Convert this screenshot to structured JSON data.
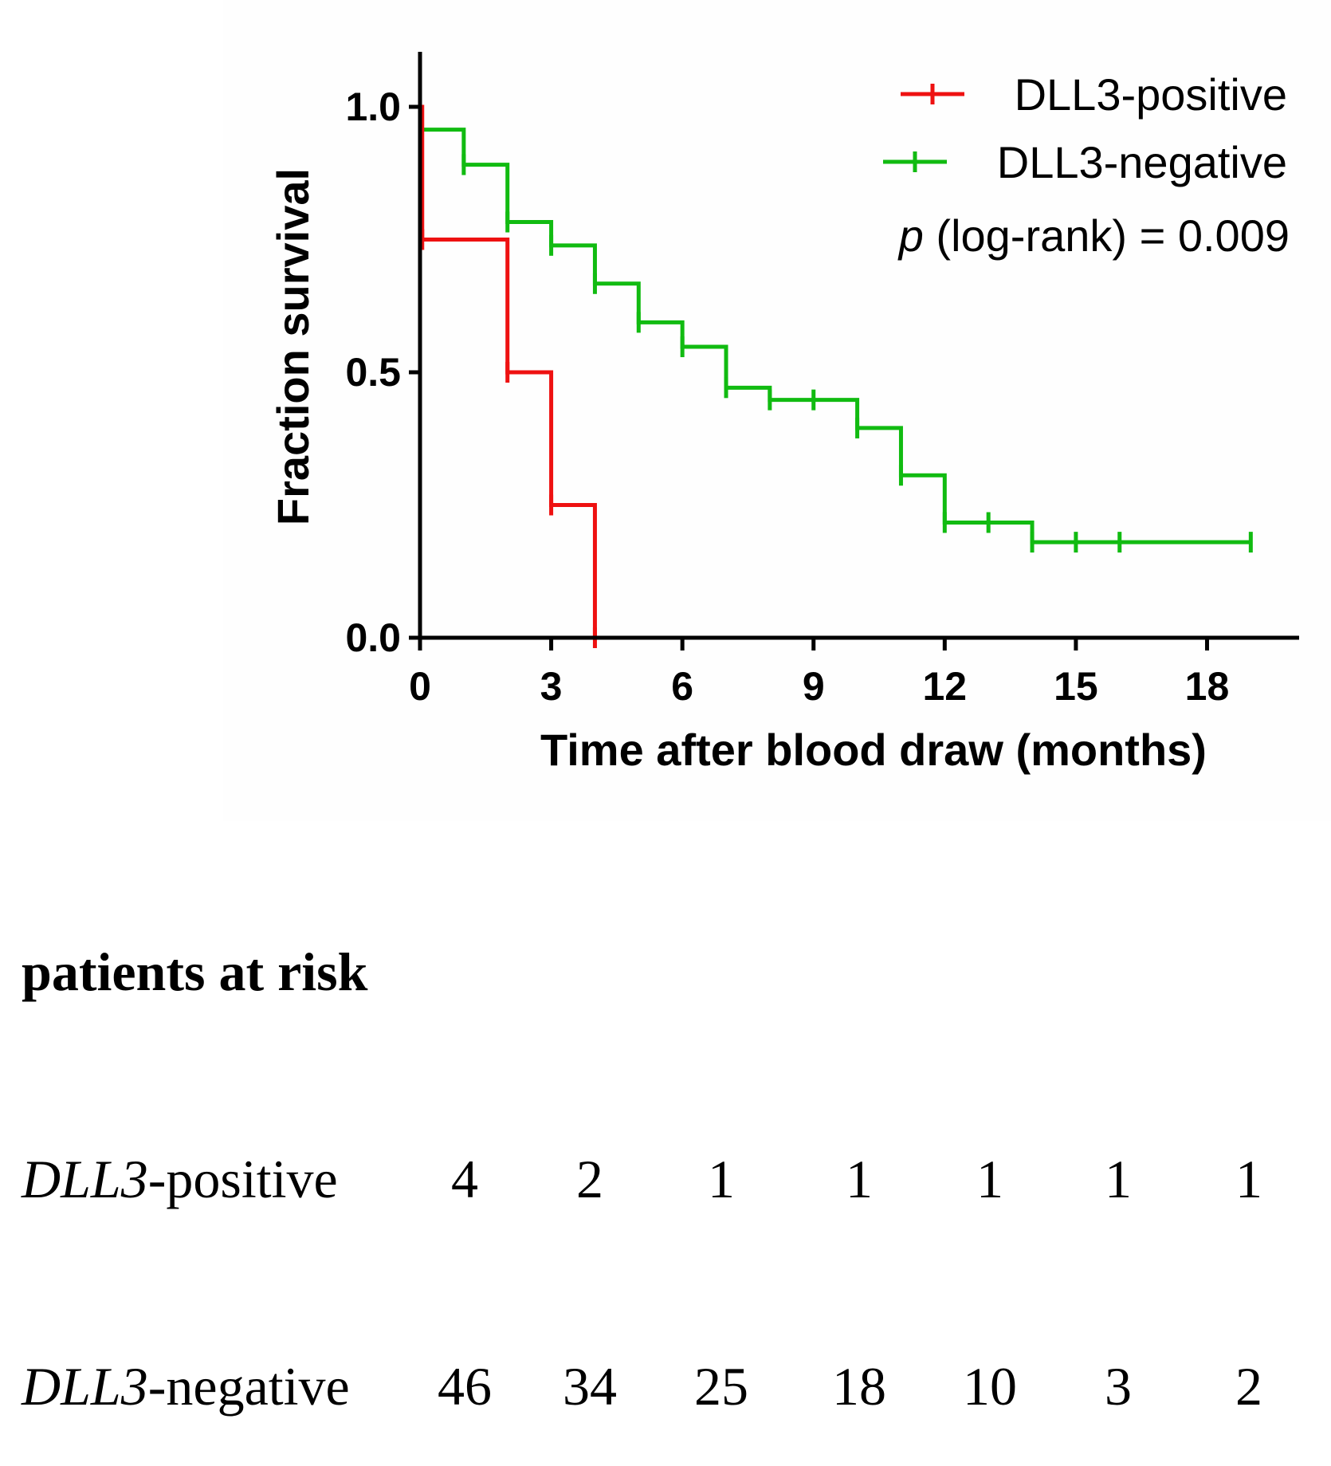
{
  "chart_data": {
    "type": "line",
    "subtype": "kaplan-meier",
    "xlabel": "Time after blood draw (months)",
    "ylabel": "Fraction survival",
    "xlim": [
      0,
      20
    ],
    "ylim": [
      0,
      1.1
    ],
    "xticks": [
      0,
      3,
      6,
      9,
      12,
      15,
      18
    ],
    "yticks": [
      0.0,
      0.5,
      1.0
    ],
    "xtick_labels": [
      "0",
      "3",
      "6",
      "9",
      "12",
      "15",
      "18"
    ],
    "ytick_labels": [
      "0.0",
      "0.5",
      "1.0"
    ],
    "grid": false,
    "legend_position": "top-right",
    "annotation": {
      "italic": "p",
      "rest": " (log-rank) = 0.009"
    },
    "series": [
      {
        "name": "DLL3-positive",
        "color": "#ee1111",
        "steps": [
          [
            0,
            1.0
          ],
          [
            0.05,
            0.75
          ],
          [
            2,
            0.5
          ],
          [
            3,
            0.25
          ],
          [
            4,
            0.0
          ]
        ],
        "end_x": 4,
        "censored": [
          [
            0.05,
            0.75
          ],
          [
            2,
            0.5
          ],
          [
            3,
            0.25
          ],
          [
            4,
            0.0
          ]
        ]
      },
      {
        "name": "DLL3-negative",
        "color": "#11bb11",
        "steps": [
          [
            0,
            0.957
          ],
          [
            1,
            0.891
          ],
          [
            2,
            0.783
          ],
          [
            3,
            0.739
          ],
          [
            4,
            0.667
          ],
          [
            5,
            0.594
          ],
          [
            6,
            0.548
          ],
          [
            7,
            0.471
          ],
          [
            8,
            0.448
          ],
          [
            10,
            0.395
          ],
          [
            11,
            0.306
          ],
          [
            12,
            0.217
          ],
          [
            14,
            0.18
          ]
        ],
        "end_x": 19,
        "censored": [
          [
            0,
            0.957
          ],
          [
            1,
            0.891
          ],
          [
            2,
            0.783
          ],
          [
            3,
            0.739
          ],
          [
            4,
            0.667
          ],
          [
            5,
            0.594
          ],
          [
            6,
            0.548
          ],
          [
            7,
            0.471
          ],
          [
            8,
            0.448
          ],
          [
            9,
            0.448
          ],
          [
            10,
            0.395
          ],
          [
            11,
            0.306
          ],
          [
            12,
            0.217
          ],
          [
            13,
            0.217
          ],
          [
            14,
            0.18
          ],
          [
            15,
            0.18
          ],
          [
            16,
            0.18
          ],
          [
            19,
            0.18
          ]
        ]
      }
    ]
  },
  "risk_table": {
    "title": "patients at risk",
    "rows": [
      {
        "label_italic": "DLL3",
        "label_rest": "-positive",
        "values": [
          "4",
          "2",
          "1",
          "1",
          "1",
          "1",
          "1"
        ]
      },
      {
        "label_italic": "DLL3",
        "label_rest": "-negative",
        "values": [
          "46",
          "34",
          "25",
          "18",
          "10",
          "3",
          "2"
        ]
      }
    ]
  }
}
